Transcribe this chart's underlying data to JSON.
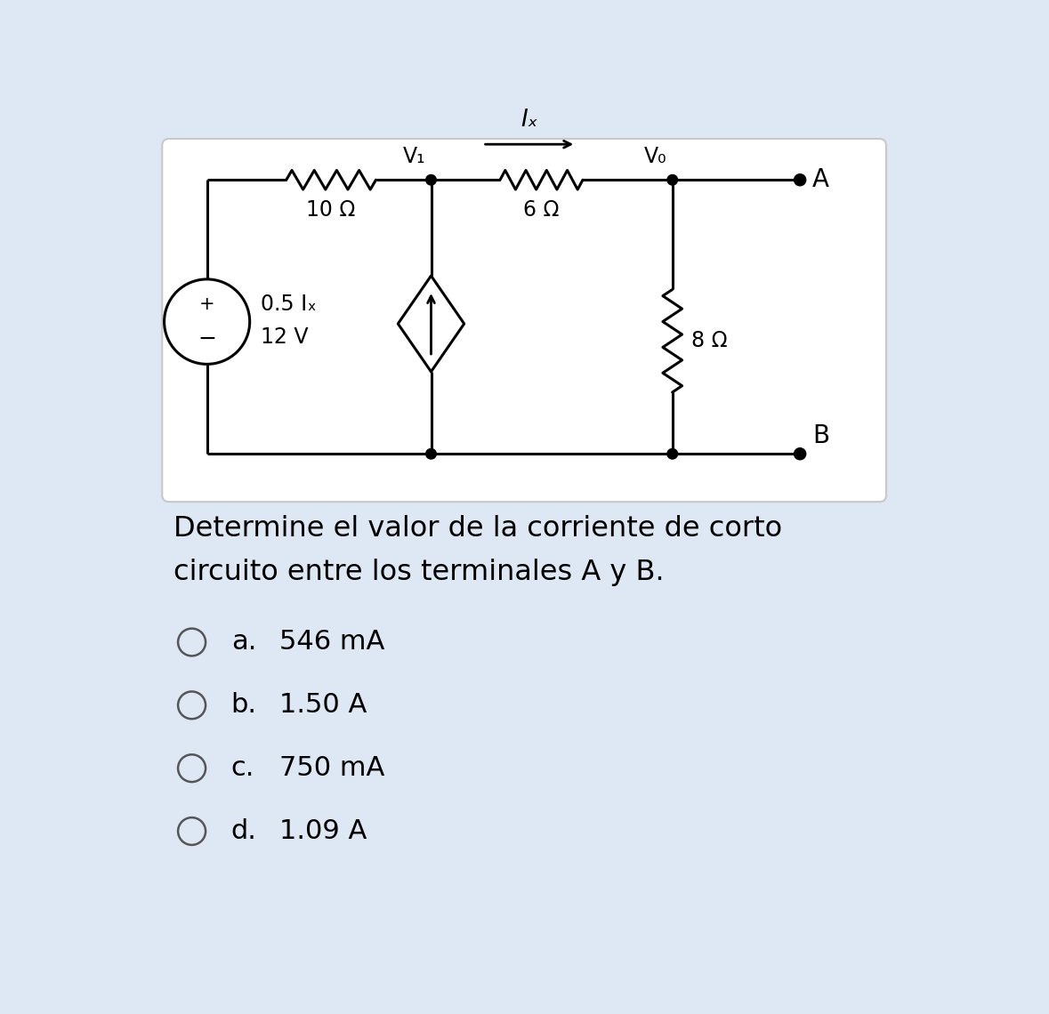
{
  "bg_color": "#dde8f4",
  "circuit_bg": "#ffffff",
  "text_color": "#000000",
  "question_text_line1": "Determine el valor de la corriente de corto",
  "question_text_line2": "circuito entre los terminales A y B.",
  "options": [
    {
      "label": "a.",
      "value": "546 mA"
    },
    {
      "label": "b.",
      "value": "1.50 A"
    },
    {
      "label": "c.",
      "value": "750 mA"
    },
    {
      "label": "d.",
      "value": "1.09 A"
    }
  ],
  "font_size_question": 23,
  "font_size_options": 22,
  "font_size_circuit": 17,
  "resistor_10": "10 Ω",
  "resistor_6": "6 Ω",
  "resistor_8": "8 Ω",
  "voltage_src": "12 V",
  "dep_src_label": "0.5 Iₓ",
  "node_V1": "V₁",
  "node_V0": "V₀",
  "current_label": "Iₓ",
  "terminal_A": "A",
  "terminal_B": "B"
}
